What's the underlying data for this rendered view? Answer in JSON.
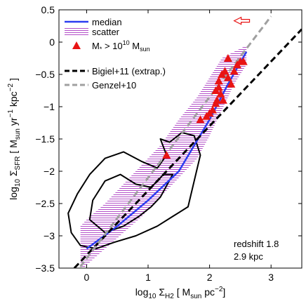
{
  "chart_data": {
    "type": "line",
    "xlabel": {
      "prefix": "log",
      "sub1": "10",
      "sym": " Σ",
      "sub2": "H2",
      "bracket_open": " [ M",
      "bracket_sub": "sun",
      "unit": " pc",
      "unit_sup": "−2",
      "bracket_close": "]"
    },
    "ylabel": {
      "prefix": "log",
      "sub1": "10",
      "sym": " Σ",
      "sub2": "SFR",
      "bracket_open": " [ M",
      "bracket_sub": "sun",
      "unit1": " yr",
      "unit1_sup": "−1",
      "unit2": " kpc",
      "unit2_sup": "−2",
      "bracket_close": " ]"
    },
    "xlim": [
      -0.45,
      3.5
    ],
    "ylim": [
      -3.5,
      0.5
    ],
    "xticks": [
      0,
      1,
      2,
      3
    ],
    "xtick_labels": [
      "0",
      "1",
      "2",
      "3"
    ],
    "yticks": [
      -3.5,
      -3,
      -2.5,
      -2,
      -1.5,
      -1,
      -0.5,
      0,
      0.5
    ],
    "ytick_labels": [
      "−3.5",
      "−3",
      "−2.5",
      "−2",
      "−1.5",
      "−1",
      "−0.5",
      "0",
      "0.5"
    ],
    "series": [
      {
        "name": "median",
        "color": "#2b3df0",
        "style": "solid",
        "x": [
          0.0,
          0.5,
          1.0,
          1.5,
          2.0,
          2.3,
          2.6
        ],
        "y": [
          -3.2,
          -2.85,
          -2.45,
          -2.0,
          -1.2,
          -0.65,
          -0.15
        ]
      },
      {
        "name": "Bigiel+11 (extrap.)",
        "color": "#000000",
        "style": "dashed",
        "x": [
          -0.2,
          3.5
        ],
        "y": [
          -3.5,
          0.2
        ]
      },
      {
        "name": "Genzel+10",
        "color": "#a0a0a0",
        "style": "dashed",
        "x": [
          -0.2,
          3.0
        ],
        "y": [
          -3.6,
          0.4
        ]
      }
    ],
    "scatter_band": {
      "name": "scatter",
      "color": "#b34fc8",
      "x": [
        -0.1,
        0.0,
        0.3,
        0.6,
        0.9,
        1.2,
        1.5,
        1.8,
        2.0,
        2.2,
        2.4,
        2.6
      ],
      "y_low": [
        -3.55,
        -3.45,
        -3.2,
        -2.95,
        -2.7,
        -2.4,
        -2.1,
        -1.8,
        -1.45,
        -1.05,
        -0.65,
        -0.35
      ],
      "y_high": [
        -2.85,
        -2.75,
        -2.5,
        -2.2,
        -1.9,
        -1.6,
        -1.2,
        -0.85,
        -0.55,
        -0.25,
        -0.15,
        -0.05
      ]
    },
    "massive_points": {
      "name_parts": {
        "prefix": "M",
        "sub": "*",
        "mid": " > 10",
        "sup": "10",
        "suffix": " M",
        "sub2": "sun"
      },
      "color": "#e81414",
      "x": [
        1.3,
        1.85,
        1.95,
        2.0,
        2.05,
        2.1,
        2.1,
        2.12,
        2.15,
        2.15,
        2.18,
        2.2,
        2.22,
        2.25,
        2.3,
        2.3,
        2.35,
        2.4,
        2.45,
        2.5,
        2.55
      ],
      "y": [
        -1.75,
        -1.2,
        -1.15,
        -1.1,
        -1.05,
        -0.95,
        -0.75,
        -0.9,
        -0.7,
        -0.6,
        -0.8,
        -0.5,
        -0.9,
        -0.45,
        -0.55,
        -0.25,
        -0.65,
        -0.45,
        -0.35,
        -0.3,
        -0.3
      ]
    },
    "contours": [
      {
        "x": [
          -0.25,
          -0.1,
          0.15,
          0.45,
          0.8,
          1.15,
          1.4,
          1.65,
          1.85,
          1.75,
          1.55,
          1.35,
          1.2,
          1.3,
          1.15,
          0.9,
          0.6,
          0.3,
          0.05,
          -0.15,
          -0.3,
          -0.25
        ],
        "y": [
          -2.95,
          -3.15,
          -3.2,
          -3.1,
          -3.0,
          -2.85,
          -2.7,
          -2.55,
          -1.75,
          -1.45,
          -1.4,
          -1.55,
          -1.5,
          -1.75,
          -1.95,
          -1.85,
          -1.7,
          -1.8,
          -2.05,
          -2.35,
          -2.65,
          -2.95
        ]
      },
      {
        "x": [
          0.05,
          0.3,
          0.6,
          0.85,
          1.05,
          1.2,
          1.4,
          1.25,
          1.05,
          0.8,
          0.55,
          0.3,
          0.1,
          0.05
        ],
        "y": [
          -2.75,
          -2.95,
          -2.85,
          -2.7,
          -2.55,
          -2.4,
          -2.05,
          -2.05,
          -2.25,
          -2.2,
          -2.05,
          -2.15,
          -2.45,
          -2.75
        ]
      }
    ],
    "legend": {
      "position": "top-left"
    },
    "arrow": {
      "direction": "left",
      "color": "#e81414",
      "x": [
        2.4,
        2.65
      ],
      "y": 0.33
    },
    "annotations": {
      "line1": "redshift 1.8",
      "line2": "2.9 kpc",
      "position": "bottom-right"
    },
    "grid": false
  }
}
